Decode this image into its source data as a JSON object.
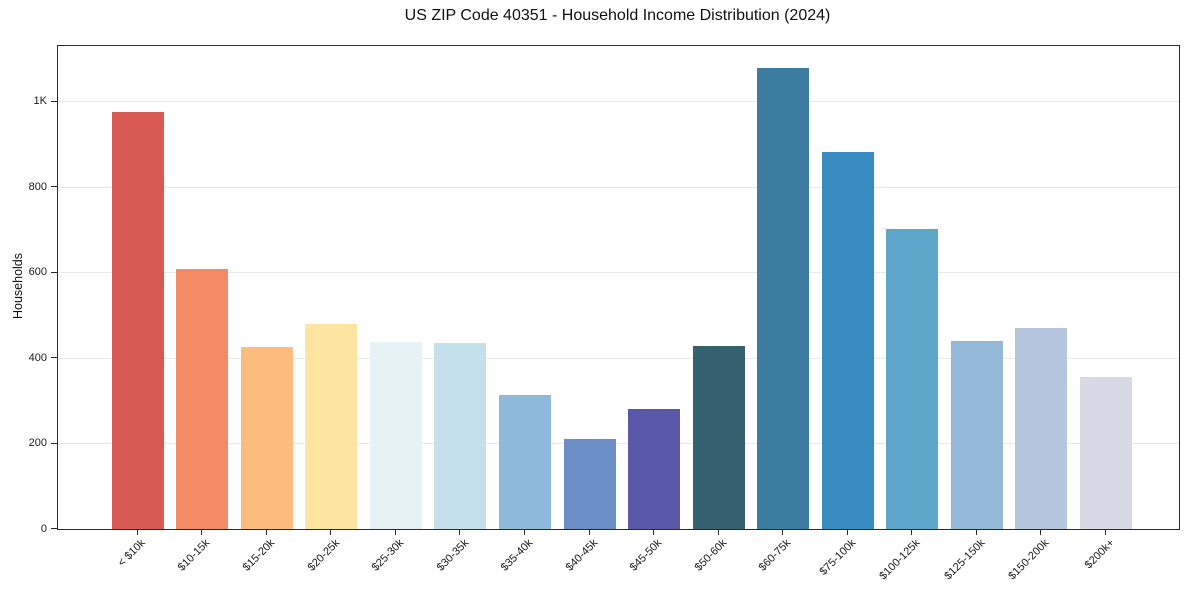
{
  "header": {
    "title": "US ZIP Code 40351 - Household Income Distribution (2024)"
  },
  "chart_data": {
    "type": "bar",
    "title": "US ZIP Code 40351 - Household Income Distribution (2024)",
    "xlabel": "",
    "ylabel": "Households",
    "ylim": [
      0,
      1130
    ],
    "grid": "horizontal-only",
    "legend": "none",
    "box": true,
    "yticks": [
      {
        "value": 0,
        "label": "0"
      },
      {
        "value": 200,
        "label": "200"
      },
      {
        "value": 400,
        "label": "400"
      },
      {
        "value": 600,
        "label": "600"
      },
      {
        "value": 800,
        "label": "800"
      },
      {
        "value": 1000,
        "label": "1K"
      }
    ],
    "categories": [
      "< $10k",
      "$10-15k",
      "$15-20k",
      "$20-25k",
      "$25-30k",
      "$30-35k",
      "$35-40k",
      "$40-45k",
      "$45-50k",
      "$50-60k",
      "$60-75k",
      "$75-100k",
      "$100-125k",
      "$125-150k",
      "$150-200k",
      "$200k+"
    ],
    "values": [
      975,
      608,
      425,
      480,
      438,
      435,
      313,
      210,
      280,
      428,
      1078,
      882,
      701,
      441,
      470,
      355
    ],
    "bar_colors": [
      "#d85a52",
      "#f28a66",
      "#fbbc7d",
      "#fde4a0",
      "#e6f2f5",
      "#c4e0ea",
      "#8fb9da",
      "#6b8ec6",
      "#5a58a9",
      "#36616f",
      "#3b7ca0",
      "#388bc0",
      "#5fa7ca",
      "#94b9d8",
      "#b5c6de",
      "#d7d9e4"
    ],
    "colors": {
      "spine": "#2b2b2b",
      "gridline": "#e9e9e9",
      "tick_text": "#1a1a1a",
      "title_text": "#111111",
      "background": "#ffffff"
    }
  }
}
